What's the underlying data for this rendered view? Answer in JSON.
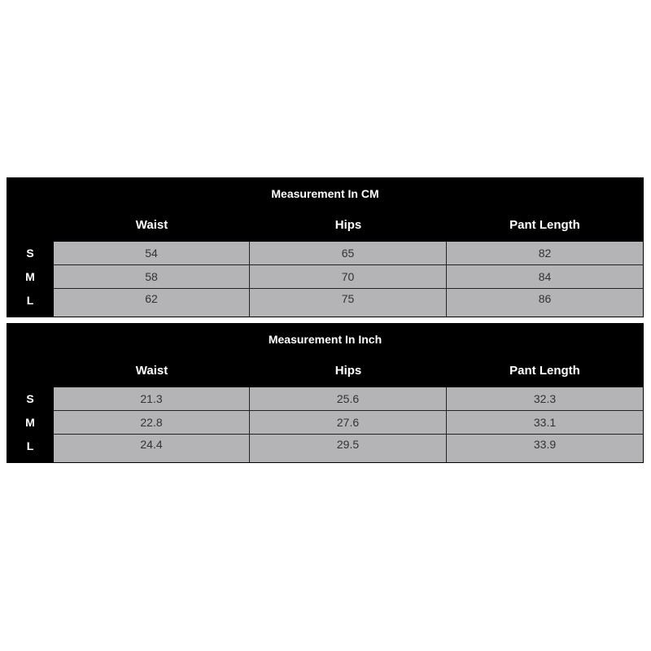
{
  "tables": [
    {
      "title": "Measurement In CM",
      "columns": [
        "Waist",
        "Hips",
        "Pant Length"
      ],
      "rows": [
        {
          "size": "S",
          "values": [
            "54",
            "65",
            "82"
          ]
        },
        {
          "size": "M",
          "values": [
            "58",
            "70",
            "84"
          ]
        },
        {
          "size": "L",
          "values": [
            "62",
            "75",
            "86"
          ]
        }
      ]
    },
    {
      "title": "Measurement In Inch",
      "columns": [
        "Waist",
        "Hips",
        "Pant Length"
      ],
      "rows": [
        {
          "size": "S",
          "values": [
            "21.3",
            "25.6",
            "32.3"
          ]
        },
        {
          "size": "M",
          "values": [
            "22.8",
            "27.6",
            "33.1"
          ]
        },
        {
          "size": "L",
          "values": [
            "24.4",
            "29.5",
            "33.9"
          ]
        }
      ]
    }
  ]
}
